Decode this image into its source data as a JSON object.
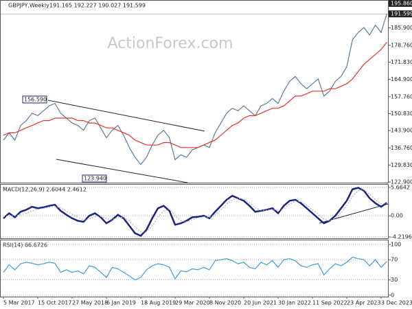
{
  "chart_data": [
    {
      "type": "line",
      "title": "GBPJPY,Weekly",
      "subtitle": "191.165 192.227 190.027 191.599",
      "watermark": "ActionForex.com",
      "ylim": [
        122.9,
        195.86
      ],
      "yticks": [
        {
          "value": 195.86,
          "label": "195.860"
        },
        {
          "value": 185.9,
          "label": "185.900"
        },
        {
          "value": 178.76,
          "label": "178.760"
        },
        {
          "value": 171.83,
          "label": "171.830"
        },
        {
          "value": 164.9,
          "label": "164.900"
        },
        {
          "value": 157.76,
          "label": "157.760"
        },
        {
          "value": 150.83,
          "label": "150.830"
        },
        {
          "value": 143.9,
          "label": "143.900"
        },
        {
          "value": 136.76,
          "label": "136.760"
        },
        {
          "value": 129.83,
          "label": "129.830"
        },
        {
          "value": 122.9,
          "label": "122.900"
        }
      ],
      "price_marker": {
        "value": 191.599,
        "label": "191.599"
      },
      "annotations": [
        {
          "value": 156.59,
          "label": "156.590"
        },
        {
          "value": 123.94,
          "label": "123.940"
        }
      ],
      "grid": false,
      "series": [
        {
          "color": "#5b7c99",
          "values": [
            140,
            143,
            140,
            146,
            148,
            151,
            150,
            152,
            154,
            155,
            151,
            149,
            147,
            146,
            144,
            148,
            149,
            145,
            141,
            144,
            146,
            142,
            137,
            133,
            130,
            133,
            138,
            142,
            144,
            141,
            132,
            134,
            133,
            136,
            137,
            138,
            137,
            143,
            147,
            151,
            153,
            152,
            154,
            152,
            150,
            154,
            155,
            157,
            155,
            160,
            164,
            166,
            163,
            161,
            163,
            165,
            158,
            160,
            164,
            166,
            170,
            181,
            184,
            186,
            183,
            187,
            184,
            191.599
          ]
        },
        {
          "color": "#e8322d",
          "values": [
            142,
            143,
            143,
            144,
            145,
            146,
            147,
            148,
            148,
            149,
            149,
            149,
            149,
            148,
            148,
            147,
            147,
            146,
            145,
            145,
            144,
            143,
            142,
            140,
            139,
            138,
            138,
            138,
            139,
            139,
            138,
            137,
            137,
            137,
            137,
            138,
            139,
            140,
            142,
            144,
            146,
            147,
            149,
            150,
            150,
            151,
            152,
            153,
            153,
            154,
            156,
            158,
            158,
            159,
            160,
            160,
            160,
            161,
            161,
            162,
            163,
            165,
            168,
            171,
            173,
            175,
            177,
            180
          ]
        }
      ]
    },
    {
      "type": "line",
      "title": "MACD(12,26,9) 2.6044 2.4612",
      "ylim": [
        -4.5,
        6.35
      ],
      "yticks": [
        5.6642,
        {
          "value": 0,
          "label": "0.00"
        },
        -4.2196
      ],
      "grid": true,
      "series": [
        {
          "color": "#1a237e",
          "values": [
            -0.5,
            0.5,
            -0.3,
            0.8,
            1.2,
            1.8,
            1.5,
            1.7,
            2.0,
            2.2,
            1.0,
            0.2,
            -0.5,
            -1.0,
            -1.2,
            0.0,
            0.5,
            -0.3,
            -1.5,
            -0.8,
            0.2,
            -0.5,
            -2.0,
            -3.5,
            -4.0,
            -2.8,
            -0.5,
            1.5,
            2.0,
            1.0,
            -1.8,
            -1.5,
            -1.0,
            -0.3,
            -0.2,
            0.0,
            -0.5,
            0.8,
            2.0,
            3.2,
            4.0,
            3.5,
            3.0,
            2.0,
            0.8,
            1.0,
            1.2,
            1.5,
            0.5,
            2.0,
            3.0,
            3.2,
            2.5,
            1.5,
            0.5,
            -0.5,
            -1.5,
            -1.0,
            0.0,
            1.5,
            3.0,
            5.3,
            5.6,
            5.0,
            3.5,
            2.5,
            1.8,
            2.6044
          ]
        },
        {
          "color": "#b0b0b0",
          "values": [
            -0.2,
            0.0,
            0.0,
            0.2,
            0.5,
            1.0,
            1.3,
            1.5,
            1.7,
            1.9,
            1.6,
            1.0,
            0.3,
            -0.3,
            -0.8,
            -0.6,
            -0.2,
            -0.1,
            -0.6,
            -0.8,
            -0.3,
            -0.3,
            -1.0,
            -2.2,
            -3.2,
            -3.2,
            -2.0,
            -0.3,
            1.0,
            1.3,
            0.0,
            -1.0,
            -1.2,
            -0.8,
            -0.4,
            -0.2,
            -0.3,
            0.2,
            1.2,
            2.3,
            3.2,
            3.5,
            3.3,
            2.6,
            1.6,
            1.1,
            1.1,
            1.3,
            1.0,
            1.4,
            2.3,
            2.9,
            2.8,
            2.1,
            1.2,
            0.3,
            -0.7,
            -1.0,
            -0.5,
            0.6,
            2.0,
            3.9,
            5.0,
            5.2,
            4.3,
            3.2,
            2.4,
            2.4612
          ]
        }
      ]
    },
    {
      "type": "line",
      "title": "RSI(14) 66.6726",
      "ylim": [
        -3,
        111
      ],
      "yticks": [
        100,
        70,
        30,
        0
      ],
      "grid": true,
      "categories": [
        "5 Mar 2017",
        null,
        null,
        null,
        null,
        null,
        "15 Oct 2017",
        null,
        null,
        null,
        null,
        null,
        "27 May 2018",
        null,
        null,
        null,
        null,
        null,
        "6 Jan 2019",
        null,
        null,
        null,
        null,
        null,
        "18 Aug 2019",
        null,
        null,
        null,
        null,
        null,
        "29 Mar 2020",
        null,
        null,
        null,
        null,
        null,
        "8 Nov 2020",
        null,
        null,
        null,
        null,
        null,
        "20 Jun 2021",
        null,
        null,
        null,
        null,
        null,
        "30 Jan 2022",
        null,
        null,
        null,
        null,
        null,
        "11 Sep 2022",
        null,
        null,
        null,
        null,
        null,
        "23 Apr 2023",
        null,
        null,
        null,
        null,
        null,
        "3 Dec 2023",
        null
      ],
      "series": [
        {
          "color": "#3d9be0",
          "values": [
            45,
            60,
            50,
            62,
            65,
            63,
            60,
            62,
            65,
            63,
            45,
            50,
            45,
            48,
            42,
            58,
            55,
            45,
            35,
            55,
            52,
            45,
            38,
            30,
            35,
            50,
            58,
            62,
            60,
            55,
            32,
            48,
            46,
            52,
            50,
            55,
            50,
            68,
            70,
            72,
            68,
            62,
            65,
            55,
            52,
            65,
            60,
            68,
            55,
            70,
            72,
            68,
            58,
            55,
            60,
            62,
            40,
            52,
            62,
            58,
            65,
            75,
            72,
            70,
            58,
            70,
            55,
            66.6726
          ]
        }
      ]
    }
  ]
}
